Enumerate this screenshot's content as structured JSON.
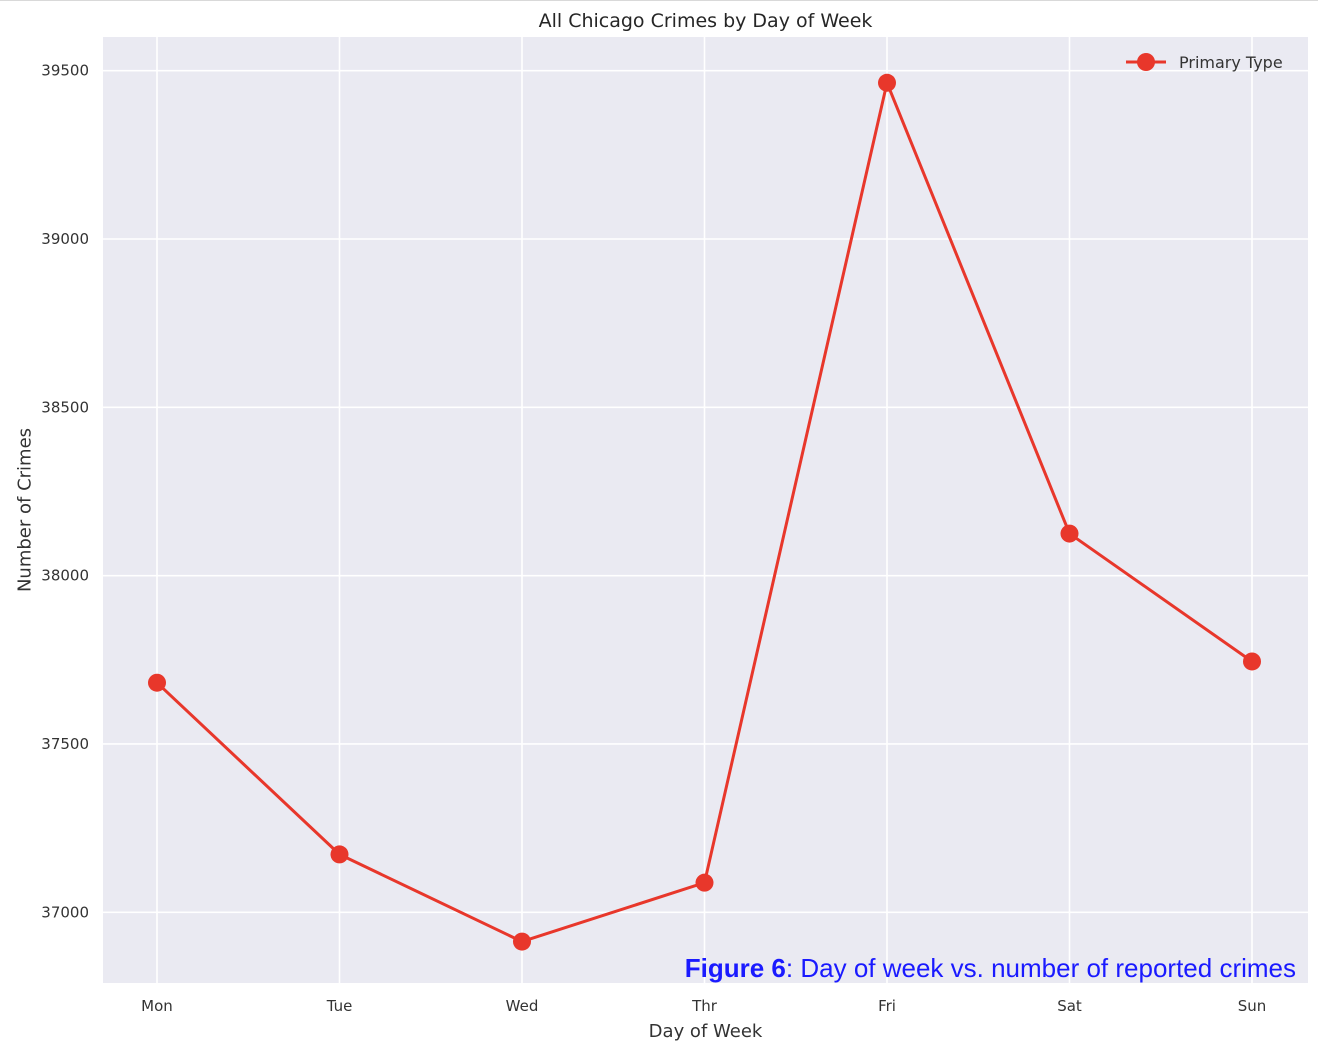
{
  "chart_data": {
    "type": "line",
    "title": "All Chicago Crimes by Day of Week",
    "xlabel": "Day of Week",
    "ylabel": "Number of Crimes",
    "categories": [
      "Mon",
      "Tue",
      "Wed",
      "Thr",
      "Fri",
      "Sat",
      "Sun"
    ],
    "series": [
      {
        "name": "Primary Type",
        "values": [
          37682,
          37172,
          36913,
          37088,
          39464,
          38125,
          37745
        ],
        "color": "#e8372b"
      }
    ],
    "yticks": [
      37000,
      37500,
      38000,
      38500,
      39000,
      39500
    ],
    "ylim": [
      36790,
      39600
    ],
    "grid": true,
    "legend_position": "top-right",
    "background": "#eaeaf2"
  },
  "caption": {
    "label": "Figure 6",
    "text": ": Day of week vs. number of reported crimes"
  }
}
